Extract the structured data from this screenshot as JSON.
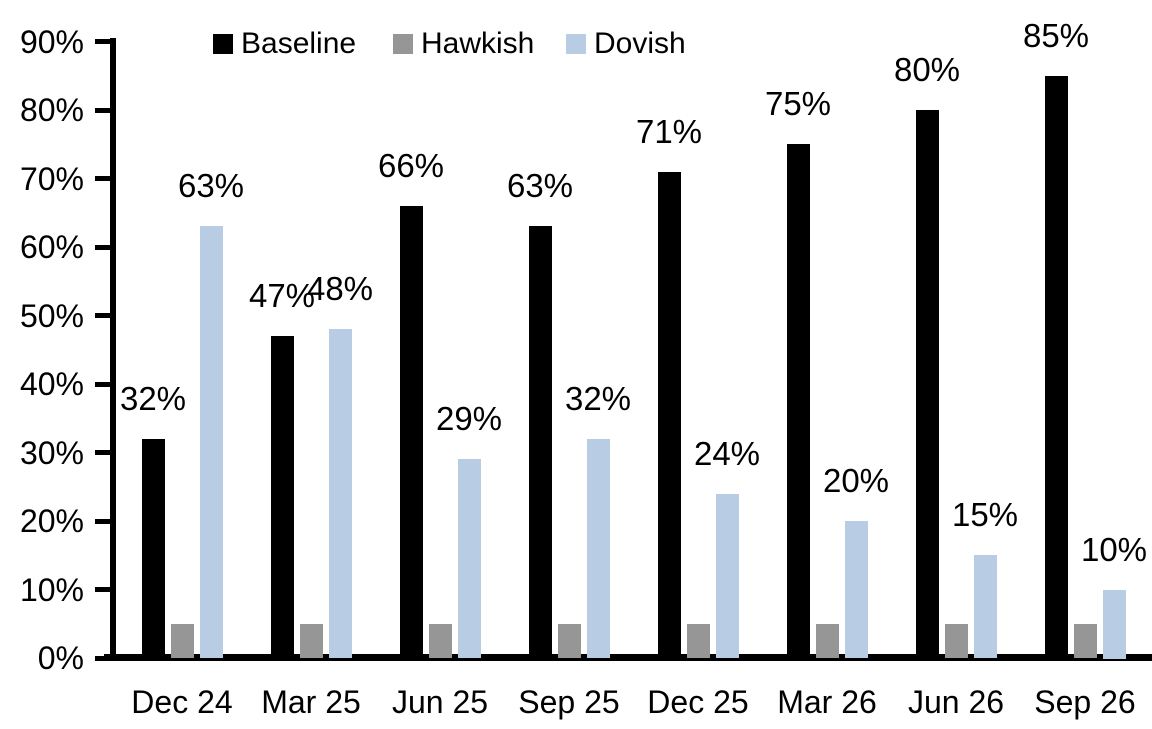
{
  "chart_data": {
    "type": "bar",
    "title": "",
    "categories": [
      "Dec 24",
      "Mar 25",
      "Jun 25",
      "Sep 25",
      "Dec 25",
      "Mar 26",
      "Jun 26",
      "Sep 26"
    ],
    "series": [
      {
        "name": "Baseline",
        "color": "#000000",
        "values": [
          32,
          47,
          66,
          63,
          71,
          75,
          80,
          85
        ],
        "labels": [
          "32%",
          "47%",
          "66%",
          "63%",
          "71%",
          "75%",
          "80%",
          "85%"
        ]
      },
      {
        "name": "Hawkish",
        "color": "#969696",
        "values": [
          5,
          5,
          5,
          5,
          5,
          5,
          5,
          5
        ],
        "labels": [
          "",
          "",
          "",
          "",
          "",
          "",
          "",
          ""
        ]
      },
      {
        "name": "Dovish",
        "color": "#B8CCE4",
        "values": [
          63,
          48,
          29,
          32,
          24,
          20,
          15,
          10
        ],
        "labels": [
          "63%",
          "48%",
          "29%",
          "32%",
          "24%",
          "20%",
          "15%",
          "10%"
        ]
      }
    ],
    "y_axis": {
      "min": 0,
      "max": 90,
      "step": 10,
      "values": [
        0,
        10,
        20,
        30,
        40,
        50,
        60,
        70,
        80,
        90
      ],
      "tick_labels": [
        "0%",
        "10%",
        "20%",
        "30%",
        "40%",
        "50%",
        "60%",
        "70%",
        "80%",
        "90%"
      ]
    },
    "legend": {
      "position": "top",
      "entries": [
        "Baseline",
        "Hawkish",
        "Dovish"
      ]
    },
    "grid": false,
    "data_labels_shown_for": [
      "Baseline",
      "Dovish"
    ]
  }
}
